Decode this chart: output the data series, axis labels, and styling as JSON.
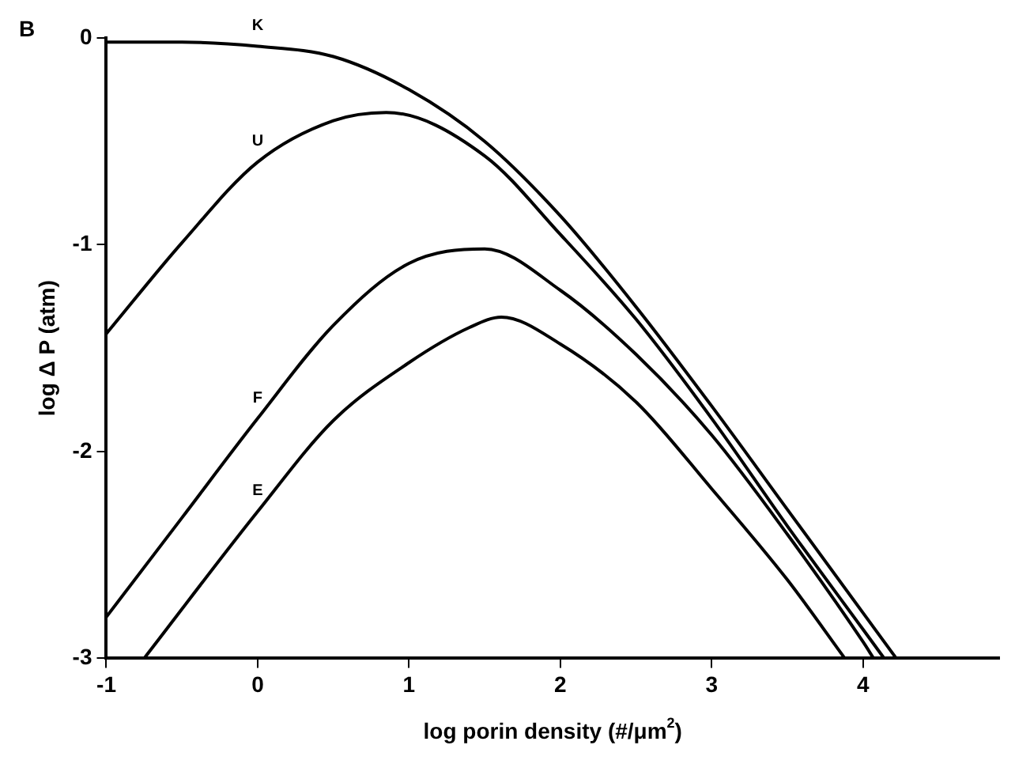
{
  "chart_data": {
    "type": "line",
    "xlabel": "log porin density (#/μm$^{2}$)",
    "ylabel": "log Δ P (atm)",
    "annotations": [
      "B"
    ],
    "xlim": [
      -1,
      4.9
    ],
    "xticks": [
      -1,
      0,
      1,
      2,
      3,
      4
    ],
    "ylim": [
      -3,
      0
    ],
    "yticks": [
      0,
      -1,
      -2,
      -3
    ],
    "grid": false,
    "legend": false,
    "marker": "none",
    "line_style": "solid",
    "series": [
      {
        "name": "K",
        "color": "#000000",
        "x": [
          -1,
          -0.5,
          0,
          0.5,
          1,
          1.5,
          2,
          2.5,
          3,
          3.5,
          4,
          4.22
        ],
        "values": [
          -0.02,
          -0.02,
          -0.04,
          -0.09,
          -0.25,
          -0.5,
          -0.86,
          -1.3,
          -1.78,
          -2.28,
          -2.78,
          -3
        ]
      },
      {
        "name": "U",
        "color": "#000000",
        "x": [
          -1,
          -0.5,
          0,
          0.5,
          0.85,
          1.5,
          2,
          2.5,
          3,
          3.5,
          4,
          4.14
        ],
        "values": [
          -1.43,
          -0.99,
          -0.6,
          -0.4,
          -0.36,
          -0.57,
          -0.95,
          -1.36,
          -1.84,
          -2.36,
          -2.86,
          -3
        ]
      },
      {
        "name": "F",
        "color": "#000000",
        "x": [
          -1,
          -0.5,
          0,
          0.5,
          1,
          1.5,
          2,
          2.5,
          3,
          3.5,
          4,
          4.07
        ],
        "values": [
          -2.8,
          -2.32,
          -1.84,
          -1.39,
          -1.09,
          -1.02,
          -1.22,
          -1.53,
          -1.92,
          -2.4,
          -2.92,
          -3
        ]
      },
      {
        "name": "E",
        "color": "#000000",
        "x": [
          -0.75,
          0,
          0.5,
          1,
          1.4,
          1.61,
          2,
          2.5,
          3,
          3.5,
          3.88
        ],
        "values": [
          -3,
          -2.29,
          -1.85,
          -1.57,
          -1.4,
          -1.35,
          -1.48,
          -1.76,
          -2.18,
          -2.62,
          -3
        ]
      }
    ]
  }
}
